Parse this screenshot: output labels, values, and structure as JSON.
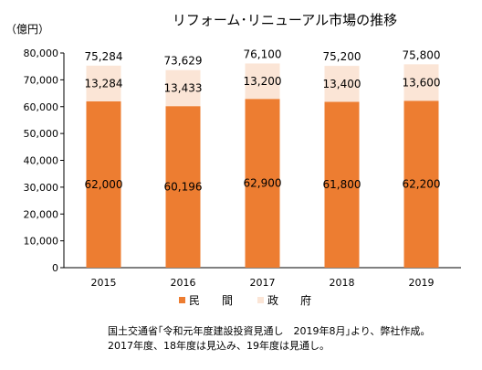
{
  "chart_data": {
    "type": "bar",
    "stacked": true,
    "title": "リフォーム･リニューアル市場の推移",
    "ylabel": "（億円）",
    "categories": [
      "2015",
      "2016",
      "2017",
      "2018",
      "2019"
    ],
    "series": [
      {
        "name": "民　　間",
        "values": [
          62000,
          60196,
          62900,
          61800,
          62200
        ],
        "labels": [
          "62,000",
          "60,196",
          "62,900",
          "61,800",
          "62,200"
        ],
        "color": "#ED7D31"
      },
      {
        "name": "政　　府",
        "values": [
          13284,
          13433,
          13200,
          13400,
          13600
        ],
        "labels": [
          "13,284",
          "13,433",
          "13,200",
          "13,400",
          "13,600"
        ],
        "color": "#FBE5D6"
      }
    ],
    "totals": [
      75284,
      73629,
      76100,
      75200,
      75800
    ],
    "total_labels": [
      "75,284",
      "73,629",
      "76,100",
      "75,200",
      "75,800"
    ],
    "ylim": [
      0,
      80000
    ],
    "yticks": [
      0,
      10000,
      20000,
      30000,
      40000,
      50000,
      60000,
      70000,
      80000
    ],
    "ytick_labels": [
      "0",
      "10,000",
      "20,000",
      "30,000",
      "40,000",
      "50,000",
      "60,000",
      "70,000",
      "80,000"
    ],
    "grid": false,
    "legend": "bottom"
  },
  "notes": {
    "line1": "国土交通省｢令和元年度建設投資見通し　2019年8月｣より、弊社作成。",
    "line2": "2017年度、18年度は見込み、19年度は見通し。"
  }
}
